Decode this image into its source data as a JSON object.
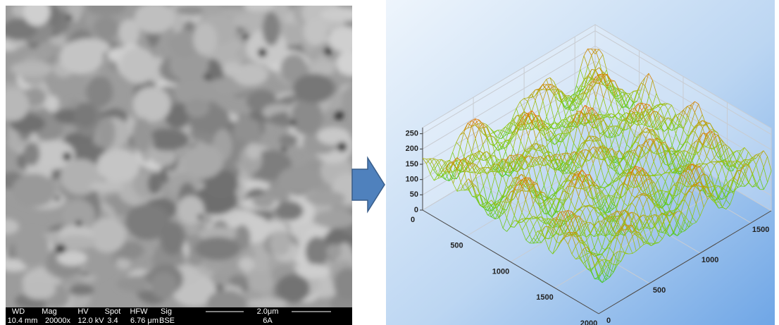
{
  "sem": {
    "labels": [
      "WD",
      "Mag",
      "HV",
      "Spot",
      "HFW",
      "Sig"
    ],
    "values": [
      "10.4 mm",
      "20000x",
      "12.0 kV",
      "3.4",
      "6.76 μm",
      "BSE"
    ],
    "scale_bar": "2.0μm",
    "sample": "6A"
  },
  "plot3d": {
    "type": "surface",
    "xlim": [
      0,
      2000
    ],
    "xticks": [
      0,
      500,
      1000,
      1500,
      2000
    ],
    "ylim": [
      0,
      1700
    ],
    "yticks": [
      0,
      500,
      1000,
      1500
    ],
    "zlim": [
      0,
      270
    ],
    "zticks": [
      0,
      50,
      100,
      150,
      200,
      250
    ]
  }
}
